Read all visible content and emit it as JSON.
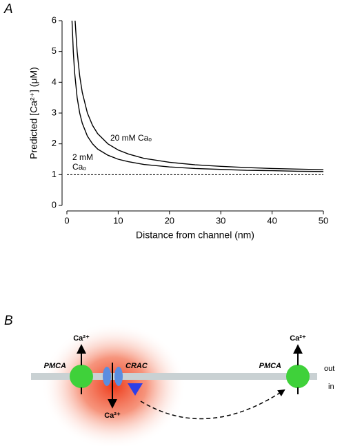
{
  "chart_data": {
    "type": "line",
    "panel_label": "A",
    "xlabel": "Distance from channel (nm)",
    "ylabel": "Predicted [Ca²⁺] (μM)",
    "xlim": [
      0,
      50
    ],
    "ylim": [
      0,
      6
    ],
    "xticks": [
      0,
      10,
      20,
      30,
      40,
      50
    ],
    "yticks": [
      0,
      1,
      2,
      3,
      4,
      5,
      6
    ],
    "reference_line": 1,
    "color": "#000000",
    "series": [
      {
        "label_lines": [
          "20 mM Caₒ"
        ],
        "x": [
          1.6,
          2,
          2.5,
          3,
          4,
          5,
          6,
          8,
          10,
          12,
          15,
          20,
          25,
          30,
          35,
          40,
          45,
          50
        ],
        "values": [
          6.0,
          5.0,
          4.2,
          3.67,
          3.0,
          2.6,
          2.33,
          2.0,
          1.8,
          1.67,
          1.53,
          1.4,
          1.32,
          1.27,
          1.23,
          1.2,
          1.18,
          1.16
        ]
      },
      {
        "label_lines": [
          "2 mM",
          "Caₒ"
        ],
        "x": [
          1,
          1.25,
          1.5,
          2,
          2.5,
          3,
          4,
          5,
          6,
          8,
          10,
          12,
          15,
          20,
          25,
          30,
          35,
          40,
          45,
          50
        ],
        "values": [
          6.0,
          5.0,
          4.33,
          3.5,
          3.0,
          2.67,
          2.25,
          2.0,
          1.83,
          1.63,
          1.5,
          1.42,
          1.33,
          1.25,
          1.2,
          1.17,
          1.14,
          1.13,
          1.11,
          1.1
        ]
      }
    ]
  },
  "diagram": {
    "panel_label": "B",
    "pumps": [
      {
        "label": "PMCA",
        "ion": "Ca²⁺"
      },
      {
        "label": "PMCA",
        "ion": "Ca²⁺"
      }
    ],
    "channel": {
      "label": "CRAC",
      "ion": "Ca²⁺"
    },
    "sides": [
      "out",
      "in"
    ]
  }
}
